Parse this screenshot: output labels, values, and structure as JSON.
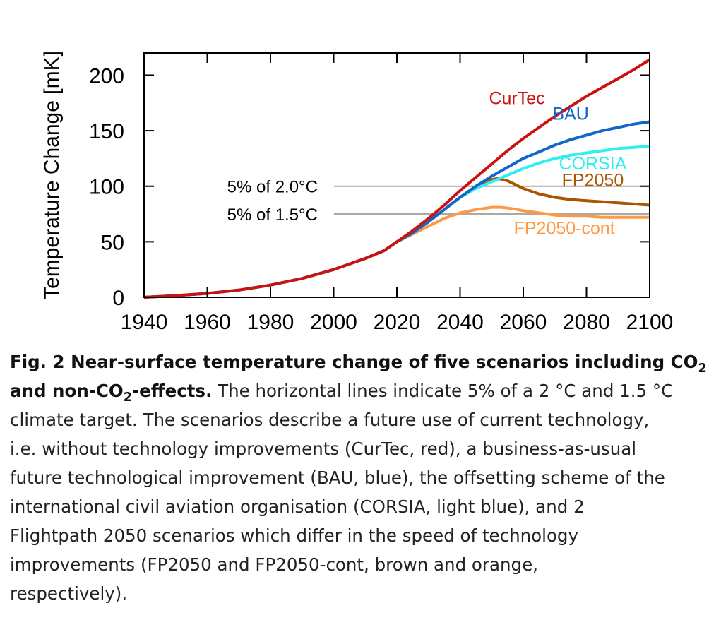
{
  "chart_data": {
    "type": "line",
    "xlabel": "",
    "ylabel": "Temperature Change [mK]",
    "xlim": [
      1940,
      2100
    ],
    "ylim": [
      0,
      220
    ],
    "xticks": [
      1940,
      1960,
      1980,
      2000,
      2020,
      2040,
      2060,
      2080,
      2100
    ],
    "xtick_labels": [
      "1940",
      "1960",
      "1980",
      "2000",
      "2020",
      "2040",
      "2060",
      "2080",
      "2100"
    ],
    "yticks": [
      0,
      50,
      100,
      150,
      200
    ],
    "ytick_labels": [
      "0",
      "50",
      "100",
      "150",
      "200"
    ],
    "grid": false,
    "reference_lines": [
      {
        "label": "5% of 2.0°C",
        "y": 100,
        "color": "#a9a9a9"
      },
      {
        "label": "5% of 1.5°C",
        "y": 75,
        "color": "#a9a9a9"
      }
    ],
    "series": [
      {
        "name": "CurTec",
        "color": "#cc1111",
        "label_pos": {
          "x": 2058,
          "y": 174
        },
        "x": [
          1940,
          1950,
          1960,
          1970,
          1980,
          1990,
          2000,
          2010,
          2016,
          2020,
          2025,
          2030,
          2035,
          2040,
          2045,
          2050,
          2055,
          2060,
          2065,
          2070,
          2075,
          2080,
          2085,
          2090,
          2095,
          2100
        ],
        "y": [
          0,
          1.5,
          3.5,
          6.5,
          11,
          17,
          25,
          35,
          42,
          50,
          60,
          71,
          83,
          96,
          108,
          120,
          132,
          143,
          153,
          163,
          172,
          181,
          189,
          197,
          205,
          214
        ]
      },
      {
        "name": "BAU",
        "color": "#1166cc",
        "label_pos": {
          "x": 2075,
          "y": 160
        },
        "x": [
          1940,
          1950,
          1960,
          1970,
          1980,
          1990,
          2000,
          2010,
          2016,
          2020,
          2025,
          2030,
          2035,
          2040,
          2045,
          2050,
          2055,
          2060,
          2065,
          2070,
          2075,
          2080,
          2085,
          2090,
          2095,
          2100
        ],
        "y": [
          0,
          1.5,
          3.5,
          6.5,
          11,
          17,
          25,
          35,
          42,
          50,
          58,
          68,
          79,
          90,
          100,
          109,
          117,
          125,
          131,
          137,
          142,
          146,
          150,
          153,
          156,
          158
        ]
      },
      {
        "name": "CORSIA",
        "color": "#33eeee",
        "label_pos": {
          "x": 2082,
          "y": 115
        },
        "x": [
          1940,
          1950,
          1960,
          1970,
          1980,
          1990,
          2000,
          2010,
          2016,
          2020,
          2025,
          2030,
          2035,
          2040,
          2045,
          2050,
          2055,
          2060,
          2065,
          2070,
          2075,
          2080,
          2085,
          2090,
          2095,
          2100
        ],
        "y": [
          0,
          1.5,
          3.5,
          6.5,
          11,
          17,
          25,
          35,
          42,
          50,
          58,
          68,
          79,
          90,
          98,
          104,
          110,
          116,
          121,
          125,
          128,
          130,
          132,
          134,
          135,
          136
        ]
      },
      {
        "name": "FP2050",
        "color": "#aa5500",
        "label_pos": {
          "x": 2082,
          "y": 100
        },
        "x": [
          1940,
          1950,
          1960,
          1970,
          1980,
          1990,
          2000,
          2010,
          2016,
          2020,
          2025,
          2030,
          2035,
          2040,
          2045,
          2050,
          2052,
          2055,
          2060,
          2065,
          2070,
          2075,
          2080,
          2085,
          2090,
          2095,
          2100
        ],
        "y": [
          0,
          1.5,
          3.5,
          6.5,
          11,
          17,
          25,
          35,
          42,
          50,
          58,
          68,
          79,
          90,
          100,
          106,
          107,
          105,
          98,
          93,
          90,
          88,
          87,
          86,
          85,
          84,
          83
        ]
      },
      {
        "name": "FP2050-cont",
        "color": "#ff9944",
        "label_pos": {
          "x": 2073,
          "y": 57
        },
        "x": [
          1940,
          1950,
          1960,
          1970,
          1980,
          1990,
          2000,
          2010,
          2016,
          2020,
          2025,
          2030,
          2035,
          2040,
          2045,
          2050,
          2053,
          2056,
          2060,
          2065,
          2070,
          2075,
          2080,
          2085,
          2090,
          2095,
          2100
        ],
        "y": [
          0,
          1.5,
          3.5,
          6.5,
          11,
          17,
          25,
          35,
          42,
          50,
          57,
          64,
          71,
          76,
          79,
          81,
          81,
          80,
          78,
          76,
          74,
          73,
          73,
          72,
          72,
          72,
          72
        ]
      }
    ]
  },
  "caption": {
    "bold_line1": "Fig. 2 Near-surface temperature change of five scenarios including CO",
    "bold_sub1": "2",
    "bold_line2a": "and non-CO",
    "bold_sub2": "2",
    "bold_line2b": "-effects.",
    "line2_rest": " The horizontal lines indicate 5% of a 2 °C and 1.5 °C",
    "line3": "climate target. The scenarios describe a future use of current technology,",
    "line4": "i.e. without technology improvements (CurTec, red), a business-as-usual",
    "line5": "future technological improvement (BAU, blue), the offsetting scheme of the",
    "line6": "international civil aviation organisation (CORSIA, light blue), and 2",
    "line7": "Flightpath 2050 scenarios which differ in the speed of technology",
    "line8": "improvements (FP2050 and FP2050-cont, brown and orange,",
    "line9": "respectively)."
  }
}
